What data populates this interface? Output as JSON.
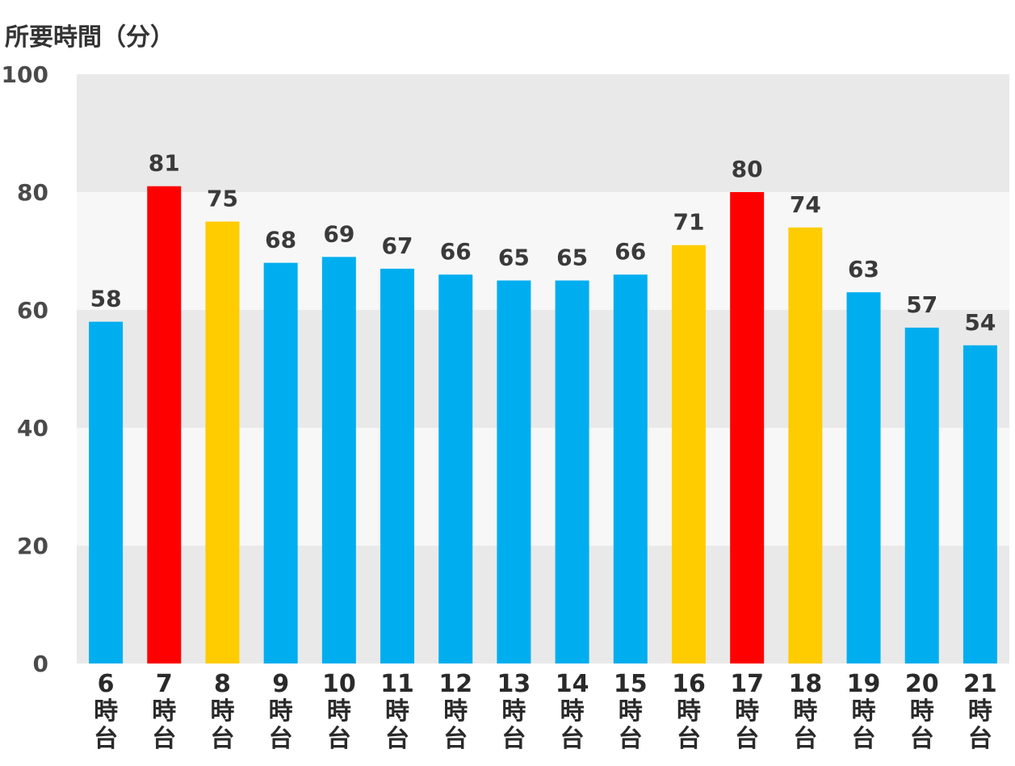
{
  "chart_data": {
    "type": "bar",
    "ylabel": "所要時間（分）",
    "ylim": [
      0,
      100
    ],
    "yticks": [
      0,
      20,
      40,
      60,
      80,
      100
    ],
    "categories": [
      [
        "6",
        "時",
        "台"
      ],
      [
        "7",
        "時",
        "台"
      ],
      [
        "8",
        "時",
        "台"
      ],
      [
        "9",
        "時",
        "台"
      ],
      [
        "10",
        "時",
        "台"
      ],
      [
        "11",
        "時",
        "台"
      ],
      [
        "12",
        "時",
        "台"
      ],
      [
        "13",
        "時",
        "台"
      ],
      [
        "14",
        "時",
        "台"
      ],
      [
        "15",
        "時",
        "台"
      ],
      [
        "16",
        "時",
        "台"
      ],
      [
        "17",
        "時",
        "台"
      ],
      [
        "18",
        "時",
        "台"
      ],
      [
        "19",
        "時",
        "台"
      ],
      [
        "20",
        "時",
        "台"
      ],
      [
        "21",
        "時",
        "台"
      ]
    ],
    "values": [
      58,
      81,
      75,
      68,
      69,
      67,
      66,
      65,
      65,
      66,
      71,
      80,
      74,
      63,
      57,
      54
    ],
    "bar_colors": [
      "#00aeef",
      "#ff0000",
      "#ffcc00",
      "#00aeef",
      "#00aeef",
      "#00aeef",
      "#00aeef",
      "#00aeef",
      "#00aeef",
      "#00aeef",
      "#ffcc00",
      "#ff0000",
      "#ffcc00",
      "#00aeef",
      "#00aeef",
      "#00aeef"
    ],
    "band_colors": [
      "#e9e9e9",
      "#f7f7f7"
    ],
    "legend": "none"
  }
}
